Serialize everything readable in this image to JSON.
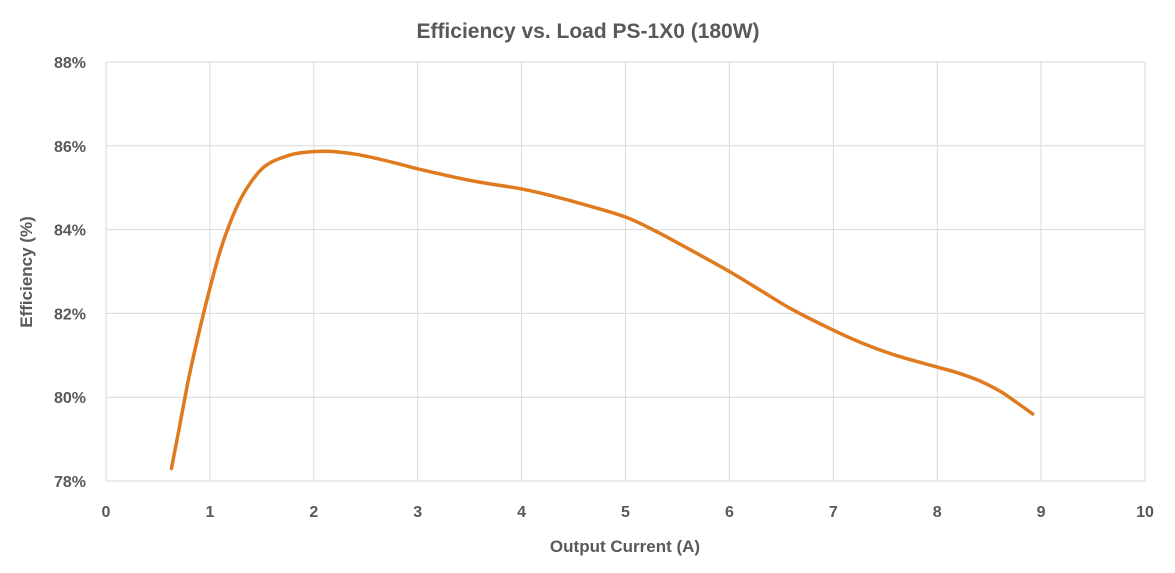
{
  "chart_data": {
    "type": "line",
    "title": "Efficiency vs. Load PS-1X0 (180W)",
    "xlabel": "Output Current (A)",
    "ylabel": "Efficiency (%)",
    "xlim": [
      0,
      10
    ],
    "ylim": [
      78,
      88
    ],
    "x_ticks": [
      0,
      1,
      2,
      3,
      4,
      5,
      6,
      7,
      8,
      9,
      10
    ],
    "x_tick_labels": [
      "0",
      "1",
      "2",
      "3",
      "4",
      "5",
      "6",
      "7",
      "8",
      "9",
      "10"
    ],
    "y_ticks": [
      78,
      80,
      82,
      84,
      86,
      88
    ],
    "y_tick_labels": [
      "78%",
      "80%",
      "82%",
      "84%",
      "86%",
      "88%"
    ],
    "grid": true,
    "series": [
      {
        "color": "#E07A1F",
        "x": [
          0.63,
          0.7,
          0.8,
          0.9,
          1.0,
          1.1,
          1.2,
          1.3,
          1.4,
          1.5,
          1.6,
          1.7,
          1.8,
          1.9,
          2.0,
          2.1,
          2.2,
          2.4,
          2.6,
          2.8,
          3.0,
          3.3,
          3.6,
          4.0,
          4.3,
          4.6,
          5.0,
          5.3,
          5.6,
          6.0,
          6.3,
          6.6,
          7.0,
          7.3,
          7.6,
          8.0,
          8.2,
          8.4,
          8.6,
          8.75,
          8.92
        ],
        "y": [
          78.3,
          79.2,
          80.5,
          81.6,
          82.6,
          83.5,
          84.2,
          84.75,
          85.15,
          85.45,
          85.62,
          85.72,
          85.8,
          85.84,
          85.86,
          85.87,
          85.86,
          85.8,
          85.7,
          85.58,
          85.45,
          85.28,
          85.13,
          84.97,
          84.8,
          84.6,
          84.3,
          83.95,
          83.55,
          83.0,
          82.55,
          82.1,
          81.6,
          81.27,
          81.0,
          80.72,
          80.58,
          80.4,
          80.15,
          79.9,
          79.6
        ]
      }
    ]
  }
}
